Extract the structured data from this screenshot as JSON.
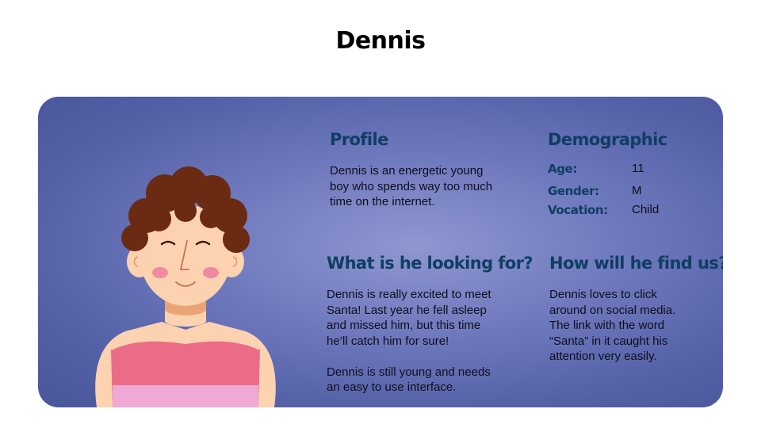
{
  "page": {
    "title": "Dennis"
  },
  "profile": {
    "heading": "Profile",
    "text": "Dennis is an energetic young\nboy who spends way too much\ntime on the internet."
  },
  "demographic": {
    "heading": "Demographic",
    "rows": [
      {
        "label": "Age:",
        "value": "11"
      },
      {
        "label": "Gender:",
        "value": "M"
      },
      {
        "label": "Vocation:",
        "value": "Child"
      }
    ]
  },
  "looking_for": {
    "heading": "What is he looking for?",
    "text": "Dennis is really excited to meet\nSanta! Last year he fell asleep\nand missed him, but this time\nhe’ll catch him for sure!\n\nDennis is still young and needs\nan easy to use interface."
  },
  "find_us": {
    "heading": "How will he find us?",
    "text": "Dennis loves to click\naround on social media.\nThe link with the word\n“Santa” in it caught his\nattention very easily."
  },
  "colors": {
    "heading": "#0f3e63",
    "card_center": "#8f97d0",
    "card_edge": "#4a569c",
    "hair": "#6b2a12",
    "skin": "#fdd2b0",
    "shirt_top": "#ec6b87",
    "shirt_bottom": "#f0a8d4"
  },
  "icons": {
    "avatar": "boy-avatar-illustration"
  }
}
